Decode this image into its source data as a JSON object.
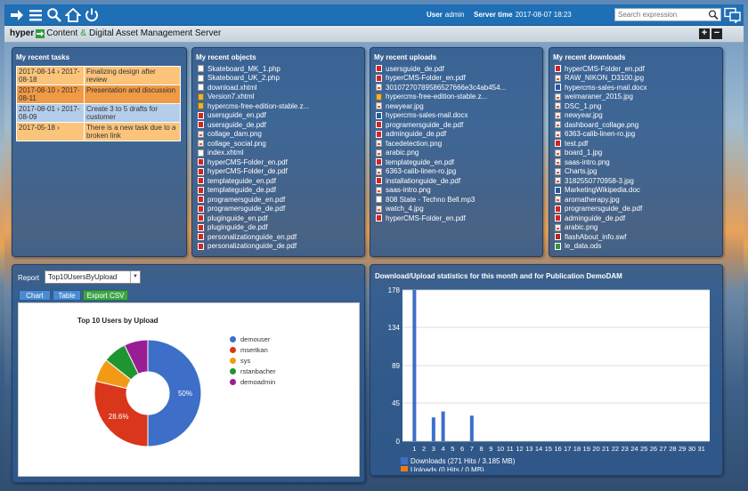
{
  "topbar": {
    "user_label": "User",
    "user_value": "admin",
    "time_label": "Server time",
    "time_value": "2017-08-07 18:23",
    "search_placeholder": "Search expression"
  },
  "titlebar": {
    "logo_brand": "hyper",
    "logo_text1": "Content",
    "logo_amp": "&",
    "logo_text2": "Digital Asset Management Server"
  },
  "tasks": {
    "title": "My recent tasks",
    "items": [
      {
        "date": "2017-08-14 › 2017-08-18",
        "text": "Finalizing design after review",
        "color": "#fbc47a"
      },
      {
        "date": "2017-08-10 › 2017-08-11",
        "text": "Presentation and discussion",
        "color": "#ef9a45"
      },
      {
        "date": "2017-08-01 › 2017-08-09",
        "text": "Create 3 to 5 drafts for customer",
        "color": "#b4cdea"
      },
      {
        "date": "2017-05-18 ›",
        "text": "There is a new task due to a broken link",
        "color": "#fbc47a"
      }
    ]
  },
  "objects": {
    "title": "My recent objects",
    "items": [
      {
        "name": "Skateboard_MK_1.php",
        "icon": "doc"
      },
      {
        "name": "Skateboard_UK_2.php",
        "icon": "doc"
      },
      {
        "name": "download.xhtml",
        "icon": "doc"
      },
      {
        "name": "Version7.xhtml",
        "icon": "zip"
      },
      {
        "name": "hypercms-free-edition-stable.z...",
        "icon": "zip"
      },
      {
        "name": "usersguide_en.pdf",
        "icon": "pdf"
      },
      {
        "name": "usersguide_de.pdf",
        "icon": "pdf"
      },
      {
        "name": "collage_dam.png",
        "icon": "img"
      },
      {
        "name": "collage_social.png",
        "icon": "img"
      },
      {
        "name": "index.xhtml",
        "icon": "doc"
      },
      {
        "name": "hyperCMS-Folder_en.pdf",
        "icon": "pdf"
      },
      {
        "name": "hyperCMS-Folder_de.pdf",
        "icon": "pdf"
      },
      {
        "name": "templateguide_en.pdf",
        "icon": "pdf"
      },
      {
        "name": "templateguide_de.pdf",
        "icon": "pdf"
      },
      {
        "name": "programersguide_en.pdf",
        "icon": "pdf"
      },
      {
        "name": "programersguide_de.pdf",
        "icon": "pdf"
      },
      {
        "name": "pluginguide_en.pdf",
        "icon": "pdf"
      },
      {
        "name": "pluginguide_de.pdf",
        "icon": "pdf"
      },
      {
        "name": "personalizationguide_en.pdf",
        "icon": "pdf"
      },
      {
        "name": "personalizationguide_de.pdf",
        "icon": "pdf"
      }
    ]
  },
  "uploads": {
    "title": "My recent uploads",
    "items": [
      {
        "name": "usersguide_de.pdf",
        "icon": "pdf"
      },
      {
        "name": "hyperCMS-Folder_en.pdf",
        "icon": "pdf"
      },
      {
        "name": "30107270789586527666e3c4ab454...",
        "icon": "img"
      },
      {
        "name": "hypercms-free-edition-stable.z...",
        "icon": "zip"
      },
      {
        "name": "newyear.jpg",
        "icon": "img"
      },
      {
        "name": "hypercms-sales-mail.docx",
        "icon": "word"
      },
      {
        "name": "programersguide_de.pdf",
        "icon": "pdf"
      },
      {
        "name": "adminguide_de.pdf",
        "icon": "pdf"
      },
      {
        "name": "facedetection.png",
        "icon": "img"
      },
      {
        "name": "arabic.png",
        "icon": "img"
      },
      {
        "name": "templateguide_en.pdf",
        "icon": "pdf"
      },
      {
        "name": "6363-calib-linen-ro.jpg",
        "icon": "img"
      },
      {
        "name": "installationguide_de.pdf",
        "icon": "pdf"
      },
      {
        "name": "saas-intro.png",
        "icon": "img"
      },
      {
        "name": "808 State - Techno Bell.mp3",
        "icon": "audio"
      },
      {
        "name": "watch_4.jpg",
        "icon": "img"
      },
      {
        "name": "hyperCMS-Folder_en.pdf",
        "icon": "pdf"
      }
    ]
  },
  "downloads": {
    "title": "My recent downloads",
    "items": [
      {
        "name": "hyperCMS-Folder_en.pdf",
        "icon": "pdf"
      },
      {
        "name": "RAW_NIKON_D3100.jpg",
        "icon": "img"
      },
      {
        "name": "hypercms-sales-mail.docx",
        "icon": "word"
      },
      {
        "name": "weimaraner_2015.jpg",
        "icon": "img"
      },
      {
        "name": "DSC_1.png",
        "icon": "img"
      },
      {
        "name": "newyear.jpg",
        "icon": "img"
      },
      {
        "name": "dashboard_collage.png",
        "icon": "img"
      },
      {
        "name": "6363-calib-linen-ro.jpg",
        "icon": "img"
      },
      {
        "name": "test.pdf",
        "icon": "pdf"
      },
      {
        "name": "board_1.jpg",
        "icon": "img"
      },
      {
        "name": "saas-intro.png",
        "icon": "img"
      },
      {
        "name": "Charts.jpg",
        "icon": "img"
      },
      {
        "name": "3182550770958-3.jpg",
        "icon": "img"
      },
      {
        "name": "MarketingWikipedia.doc",
        "icon": "word"
      },
      {
        "name": "aromatherapy.jpg",
        "icon": "img"
      },
      {
        "name": "programersguide_de.pdf",
        "icon": "pdf"
      },
      {
        "name": "adminguide_de.pdf",
        "icon": "pdf"
      },
      {
        "name": "arabic.png",
        "icon": "img"
      },
      {
        "name": "flashAbout_info.swf",
        "icon": "swf"
      },
      {
        "name": "le_data.ods",
        "icon": "ods"
      }
    ]
  },
  "report": {
    "label": "Report",
    "selected": "Top10UsersByUpload",
    "btn_chart": "Chart",
    "btn_table": "Table",
    "btn_csv": "Export CSV"
  },
  "stats": {
    "title": "Download/Upload statistics for this month and for Publication DemoDAM"
  },
  "chart_data": [
    {
      "type": "pie",
      "title": "Top 10 Users by Upload",
      "donut": true,
      "slices": [
        {
          "name": "demouser",
          "value": 50,
          "color": "#3d6fc8",
          "label": "50%"
        },
        {
          "name": "msertkan",
          "value": 28.6,
          "color": "#d9361b",
          "label": "28.6%"
        },
        {
          "name": "sys",
          "value": 7.1,
          "color": "#f29a16",
          "label": ""
        },
        {
          "name": "rstanbacher",
          "value": 7.1,
          "color": "#1f9531",
          "label": ""
        },
        {
          "name": "demoadmin",
          "value": 7.2,
          "color": "#9a1d96",
          "label": ""
        }
      ],
      "legend": "right"
    },
    {
      "type": "bar",
      "title": "",
      "categories": [
        "1",
        "2",
        "3",
        "4",
        "5",
        "6",
        "7",
        "8",
        "9",
        "10",
        "11",
        "12",
        "13",
        "14",
        "15",
        "16",
        "17",
        "18",
        "19",
        "20",
        "21",
        "22",
        "23",
        "24",
        "25",
        "26",
        "27",
        "28",
        "29",
        "30",
        "31"
      ],
      "yticks": [
        0,
        45,
        89,
        134,
        178
      ],
      "ylim": [
        0,
        178
      ],
      "grid": true,
      "series": [
        {
          "name": "Downloads (271 Hits / 3.185 MB)",
          "color": "#3d6fc8",
          "values": [
            178,
            0,
            28,
            35,
            0,
            0,
            30,
            0,
            0,
            0,
            0,
            0,
            0,
            0,
            0,
            0,
            0,
            0,
            0,
            0,
            0,
            0,
            0,
            0,
            0,
            0,
            0,
            0,
            0,
            0,
            0
          ]
        },
        {
          "name": "Uploads (0 Hits / 0 MB)",
          "color": "#f07b13",
          "values": [
            0,
            0,
            0,
            0,
            0,
            0,
            0,
            0,
            0,
            0,
            0,
            0,
            0,
            0,
            0,
            0,
            0,
            0,
            0,
            0,
            0,
            0,
            0,
            0,
            0,
            0,
            0,
            0,
            0,
            0,
            0
          ]
        }
      ],
      "legend": "bottom-left"
    }
  ]
}
